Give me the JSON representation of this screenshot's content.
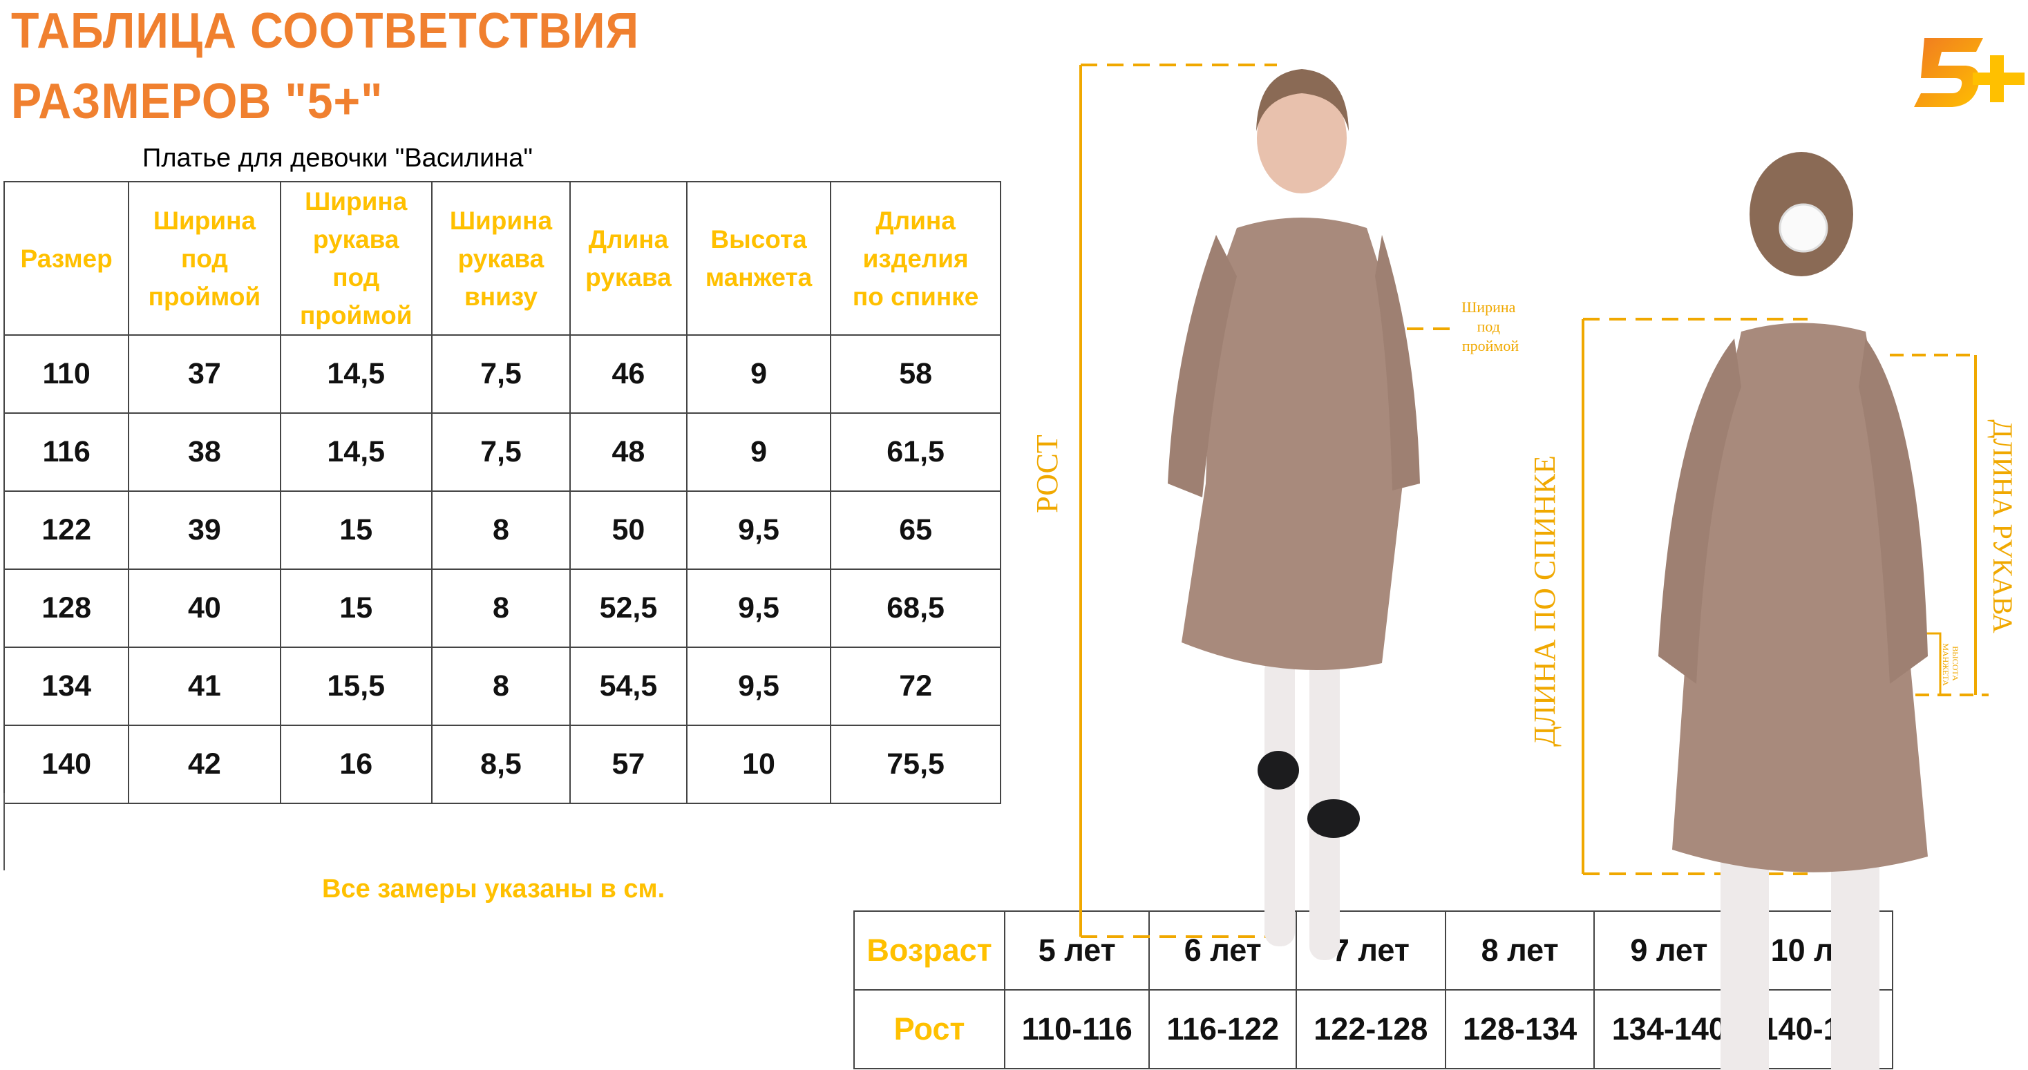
{
  "title": {
    "line1": "ТАБЛИЦА СООТВЕТСТВИЯ",
    "line2": "РАЗМЕРОВ \"5+\""
  },
  "subtitle": "Платье для девочки \"Василина\"",
  "size_table": {
    "headers": [
      [
        "Размер"
      ],
      [
        "Ширина",
        "под",
        "проймой"
      ],
      [
        "Ширина",
        "рукава",
        "под",
        "проймой"
      ],
      [
        "Ширина",
        "рукава",
        "внизу"
      ],
      [
        "Длина",
        "рукава"
      ],
      [
        "Высота",
        "манжета"
      ],
      [
        "Длина",
        "изделия",
        "по спинке"
      ]
    ],
    "rows": [
      [
        "110",
        "37",
        "14,5",
        "7,5",
        "46",
        "9",
        "58"
      ],
      [
        "116",
        "38",
        "14,5",
        "7,5",
        "48",
        "9",
        "61,5"
      ],
      [
        "122",
        "39",
        "15",
        "8",
        "50",
        "9,5",
        "65"
      ],
      [
        "128",
        "40",
        "15",
        "8",
        "52,5",
        "9,5",
        "68,5"
      ],
      [
        "134",
        "41",
        "15,5",
        "8",
        "54,5",
        "9,5",
        "72"
      ],
      [
        "140",
        "42",
        "16",
        "8,5",
        "57",
        "10",
        "75,5"
      ]
    ]
  },
  "note": "Все замеры указаны в см.",
  "age_table": {
    "age_label": "Возраст",
    "height_label": "Рост",
    "ages": [
      "5 лет",
      "6 лет",
      "7 лет",
      "8 лет",
      "9 лет",
      "10 лет"
    ],
    "heights": [
      "110-116",
      "116-122",
      "122-128",
      "128-134",
      "134-140",
      "140-146"
    ]
  },
  "photo_labels": {
    "height": "РОСТ",
    "chest_width": [
      "Ширина",
      "под",
      "проймой"
    ],
    "back_length": "ДЛИНА ПО СПИНКЕ",
    "sleeve_length": "ДЛИНА РУКАВА",
    "cuff_height": [
      "ВЫСОТА",
      "МАНЖЕТА"
    ]
  },
  "logo": {
    "text": "5+"
  },
  "colors": {
    "title": "#f0802f",
    "header": "#ffc000",
    "measure_line": "#f0a800",
    "dress": "#a88a7c"
  }
}
